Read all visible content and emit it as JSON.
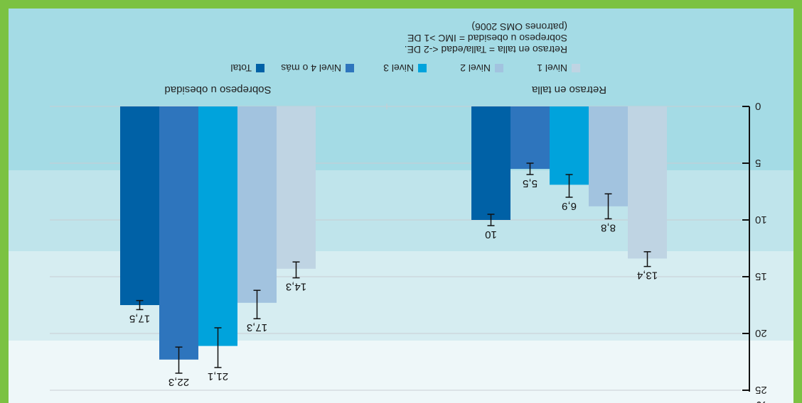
{
  "chart_data": {
    "type": "bar",
    "unit_label": "%",
    "ylim": [
      0,
      25
    ],
    "yticks": [
      0,
      5,
      10,
      15,
      20,
      25
    ],
    "categories": [
      "Retraso en talla",
      "Sobrepeso u obesidad"
    ],
    "series": [
      {
        "name": "Total",
        "color": "#0061a6",
        "values": [
          10,
          17.5
        ],
        "labels": [
          "10",
          "17,5"
        ],
        "err": [
          [
            9.5,
            10.5
          ],
          [
            17.1,
            17.9
          ]
        ]
      },
      {
        "name": "Nivel 4 o más",
        "color": "#2e75bd",
        "values": [
          5.5,
          22.3
        ],
        "labels": [
          "5,5",
          "22,3"
        ],
        "err": [
          [
            5,
            6
          ],
          [
            21.2,
            23.5
          ]
        ]
      },
      {
        "name": "Nivel 3",
        "color": "#00a3dc",
        "values": [
          6.9,
          21.1
        ],
        "labels": [
          "6,9",
          "21,1"
        ],
        "err": [
          [
            6,
            8
          ],
          [
            19.5,
            23
          ]
        ]
      },
      {
        "name": "Nivel 2",
        "color": "#a2c3df",
        "values": [
          8.8,
          17.3
        ],
        "labels": [
          "8,8",
          "17,3"
        ],
        "err": [
          [
            7.7,
            9.9
          ],
          [
            16.2,
            18.7
          ]
        ]
      },
      {
        "name": "Nivel 1",
        "color": "#bfd4e3",
        "values": [
          13.4,
          14.3
        ],
        "labels": [
          "13,4",
          "14,3"
        ],
        "err": [
          [
            12.8,
            14.1
          ],
          [
            13.7,
            15.1
          ]
        ]
      }
    ],
    "legend_order": [
      "Nivel 1",
      "Nivel 2",
      "Nivel 3",
      "Nivel 4 o más",
      "Total"
    ],
    "notes": [
      "Retraso en talla = Talla/edad <-2 DE.",
      "Sobrepeso u obesidad = IMC >1 DE",
      "(patrones OMS 2006)"
    ],
    "grid": true
  },
  "colors": {
    "frame": "#7bc242",
    "band_1": "#eef7f9",
    "band_2": "#d6edf1",
    "band_3": "#bfe4eb",
    "band_4": "#a4dbe5"
  }
}
